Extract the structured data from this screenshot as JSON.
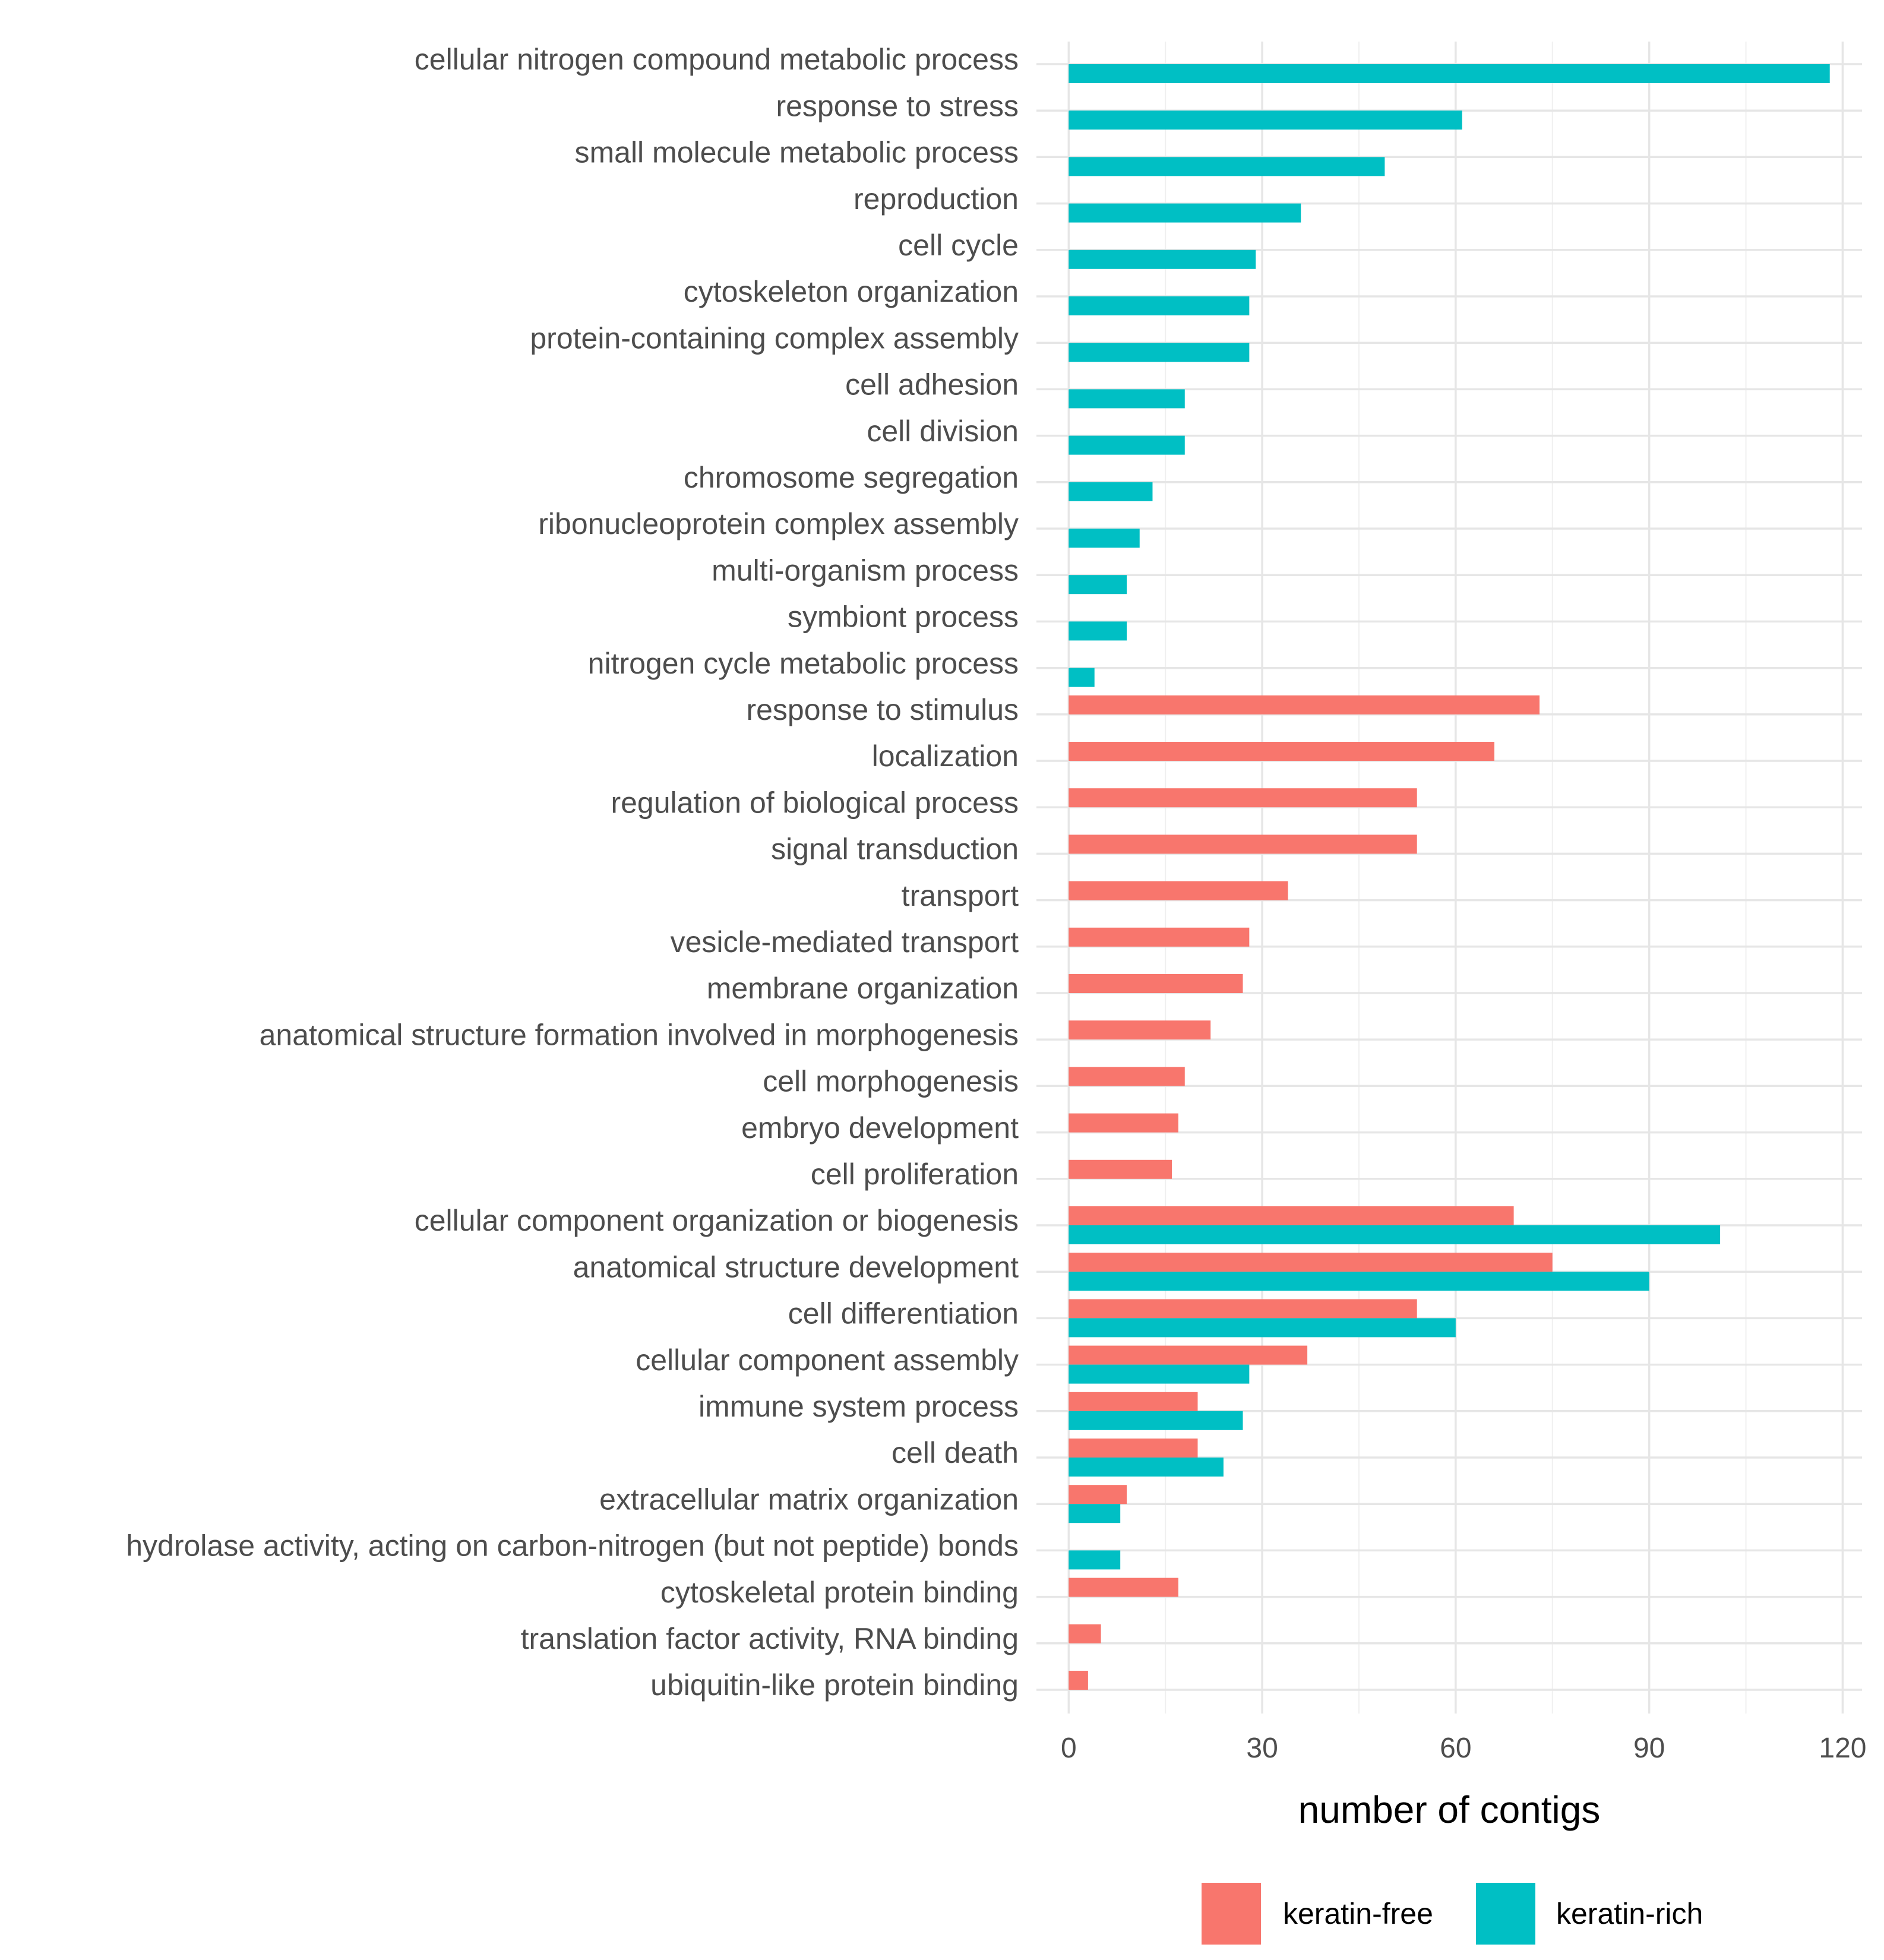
{
  "chart_data": {
    "type": "bar",
    "orientation": "horizontal",
    "xlabel": "number of contigs",
    "ylabel": "",
    "xlim": [
      -5,
      123
    ],
    "xticks": [
      0,
      30,
      60,
      90,
      120
    ],
    "grid": true,
    "legend_position": "bottom",
    "categories": [
      "cellular nitrogen compound metabolic process",
      "response to stress",
      "small molecule metabolic process",
      "reproduction",
      "cell cycle",
      "cytoskeleton organization",
      "protein-containing complex assembly",
      "cell adhesion",
      "cell division",
      "chromosome segregation",
      "ribonucleoprotein complex assembly",
      "multi-organism process",
      "symbiont process",
      "nitrogen cycle metabolic process",
      "response to stimulus",
      "localization",
      "regulation of biological process",
      "signal transduction",
      "transport",
      "vesicle-mediated transport",
      "membrane organization",
      "anatomical structure formation involved in morphogenesis",
      "cell morphogenesis",
      "embryo development",
      "cell proliferation",
      "cellular component organization or biogenesis",
      "anatomical structure development",
      "cell differentiation",
      "cellular component assembly",
      "immune system process",
      "cell death",
      "extracellular matrix organization",
      "hydrolase activity, acting on carbon-nitrogen (but not peptide) bonds",
      "cytoskeletal protein binding",
      "translation factor activity, RNA binding",
      "ubiquitin-like protein binding"
    ],
    "series": [
      {
        "name": "keratin-free",
        "color": "#F8766D",
        "values": [
          0,
          0,
          0,
          0,
          0,
          0,
          0,
          0,
          0,
          0,
          0,
          0,
          0,
          0,
          73,
          66,
          54,
          54,
          34,
          28,
          27,
          22,
          18,
          17,
          16,
          69,
          75,
          54,
          37,
          20,
          20,
          9,
          0,
          17,
          5,
          3
        ]
      },
      {
        "name": "keratin-rich",
        "color": "#00BFC4",
        "values": [
          118,
          61,
          49,
          36,
          29,
          28,
          28,
          18,
          18,
          13,
          11,
          9,
          9,
          4,
          0,
          0,
          0,
          0,
          0,
          0,
          0,
          0,
          0,
          0,
          0,
          101,
          90,
          60,
          28,
          27,
          24,
          8,
          8,
          0,
          0,
          0
        ]
      }
    ]
  }
}
